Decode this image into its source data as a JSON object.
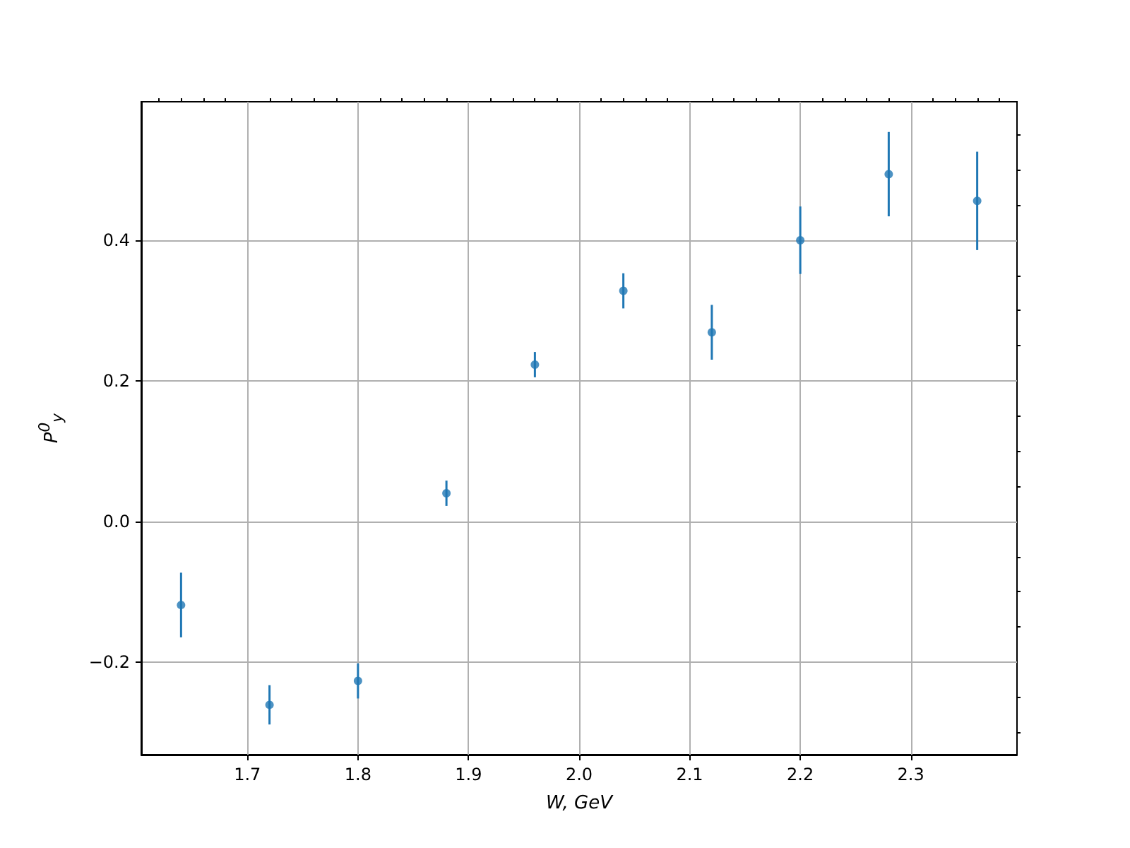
{
  "chart_data": {
    "type": "scatter",
    "xlabel": "W, GeV",
    "ylabel": "P$^{0}$$_{y}$",
    "x": [
      1.64,
      1.72,
      1.8,
      1.88,
      1.96,
      2.04,
      2.12,
      2.2,
      2.28,
      2.36
    ],
    "series": [
      {
        "color": "#1f77b4",
        "values": [
          -0.119,
          -0.261,
          -0.227,
          0.04,
          0.223,
          0.328,
          0.269,
          0.4,
          0.494,
          0.456
        ],
        "errors": [
          0.046,
          0.028,
          0.025,
          0.018,
          0.018,
          0.025,
          0.039,
          0.048,
          0.06,
          0.07
        ]
      }
    ],
    "marker": "circle",
    "grid": true,
    "xlim": [
      1.604,
      2.396
    ],
    "ylim": [
      -0.332,
      0.597
    ],
    "xticks": [
      {
        "value": 1.62,
        "label": null
      },
      {
        "value": 1.64,
        "label": null
      },
      {
        "value": 1.66,
        "label": null
      },
      {
        "value": 1.68,
        "label": null
      },
      1.7,
      {
        "value": 1.72,
        "label": null
      },
      {
        "value": 1.74,
        "label": null
      },
      {
        "value": 1.76,
        "label": null
      },
      {
        "value": 1.78,
        "label": null
      },
      1.8,
      {
        "value": 1.82,
        "label": null
      },
      {
        "value": 1.84,
        "label": null
      },
      {
        "value": 1.86,
        "label": null
      },
      {
        "value": 1.88,
        "label": null
      },
      1.9,
      {
        "value": 1.92,
        "label": null
      },
      {
        "value": 1.94,
        "label": null
      },
      {
        "value": 1.96,
        "label": null
      },
      {
        "value": 1.98,
        "label": null
      },
      {
        "value": 2.0,
        "label": "2.0"
      },
      {
        "value": 2.02,
        "label": null
      },
      {
        "value": 2.04,
        "label": null
      },
      {
        "value": 2.06,
        "label": null
      },
      {
        "value": 2.08,
        "label": null
      },
      2.1,
      {
        "value": 2.12,
        "label": null
      },
      {
        "value": 2.14,
        "label": null
      },
      {
        "value": 2.16,
        "label": null
      },
      {
        "value": 2.18,
        "label": null
      },
      2.2,
      {
        "value": 2.22,
        "label": null
      },
      {
        "value": 2.24,
        "label": null
      },
      {
        "value": 2.26,
        "label": null
      },
      {
        "value": 2.28,
        "label": null
      },
      2.3,
      {
        "value": 2.32,
        "label": null
      },
      {
        "value": 2.34,
        "label": null
      },
      {
        "value": 2.36,
        "label": null
      },
      {
        "value": 2.38,
        "label": null
      }
    ],
    "yticks": [
      {
        "value": -0.3,
        "label": null
      },
      {
        "value": -0.25,
        "label": null
      },
      {
        "value": -0.2,
        "label": "−0.2"
      },
      {
        "value": -0.15,
        "label": null
      },
      {
        "value": -0.1,
        "label": null
      },
      {
        "value": -0.05,
        "label": null
      },
      {
        "value": 0,
        "label": "0.0"
      },
      {
        "value": 0.05,
        "label": null
      },
      {
        "value": 0.1,
        "label": null
      },
      {
        "value": 0.15,
        "label": null
      },
      0.2,
      {
        "value": 0.25,
        "label": null
      },
      {
        "value": 0.3,
        "label": null
      },
      {
        "value": 0.35,
        "label": null
      },
      0.4,
      {
        "value": 0.45,
        "label": null
      },
      {
        "value": 0.5,
        "label": null
      },
      {
        "value": 0.55,
        "label": null
      }
    ]
  }
}
